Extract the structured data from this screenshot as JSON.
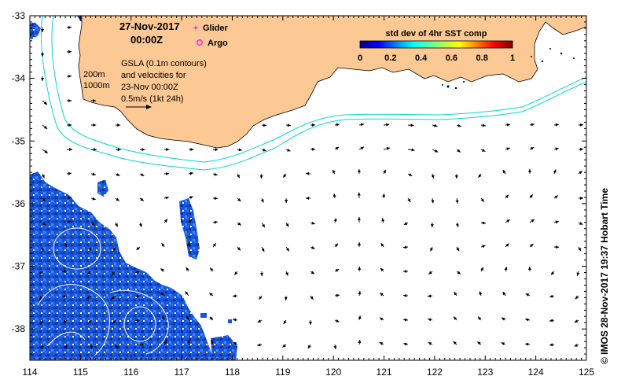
{
  "title": {
    "date": "27-Nov-2017",
    "time": "00:00Z"
  },
  "legend": {
    "items": [
      {
        "label": "Glider",
        "color": "#ff33cc",
        "symbol": "star"
      },
      {
        "label": "Argo",
        "color": "#ff33cc",
        "symbol": "circle"
      }
    ]
  },
  "colorbar": {
    "title": "std dev of 4hr SST comp",
    "ticks": [
      "0",
      "0.2",
      "0.4",
      "0.6",
      "0.8",
      "1"
    ],
    "range": [
      0,
      1
    ],
    "colormap": "jet"
  },
  "annotations": {
    "contour_200": "200m",
    "contour_1000": "1000m",
    "gsla_lines": [
      "GSLA (0.1m contours)",
      "and velocities for",
      "23-Nov 00:00Z",
      "0.5m/s (1kt 24h)"
    ]
  },
  "credit": "© IMOS 28-Nov-2017 19:37 Hobart Time",
  "axes": {
    "x_ticks": [
      "114",
      "115",
      "116",
      "117",
      "118",
      "119",
      "120",
      "121",
      "122",
      "123",
      "124",
      "125"
    ],
    "y_ticks": [
      "-33",
      "-34",
      "-35",
      "-36",
      "-37",
      "-38"
    ],
    "lon_range": [
      114,
      125
    ],
    "lat_range": [
      -38.5,
      -33
    ]
  },
  "colors": {
    "land": "#fcc894",
    "bathymetry_contour": "#00d8d8",
    "sst_low": "#0a3cc8",
    "sst_mid": "#1e78ff",
    "arrows": "#000000",
    "gsla_contour": "#ffffff"
  }
}
